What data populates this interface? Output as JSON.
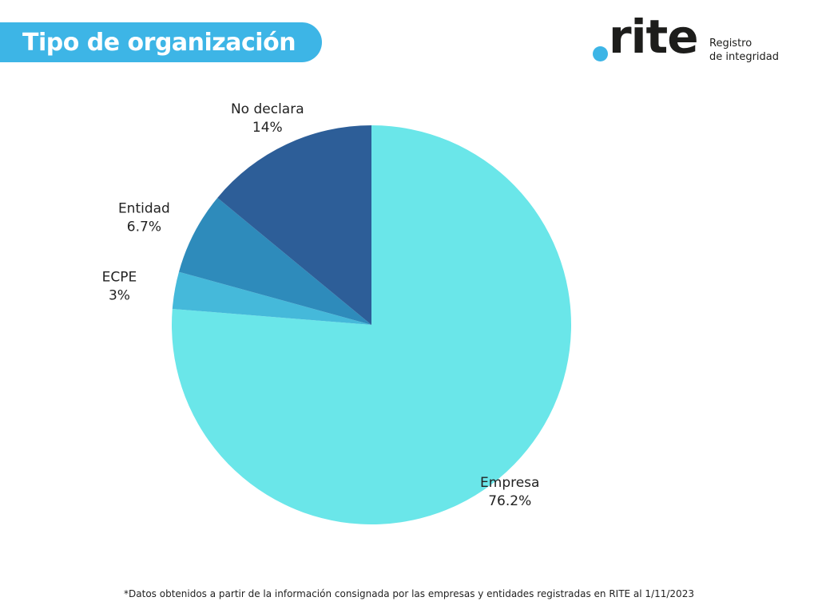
{
  "header": {
    "title": "Tipo de organización"
  },
  "logo": {
    "word": "rite",
    "line1": "Registro",
    "line2": "de integridad"
  },
  "chart_data": {
    "type": "pie",
    "title": "Tipo de organización",
    "start_angle_deg": 0,
    "direction": "clockwise",
    "slices": [
      {
        "label": "Empresa",
        "value": 76.2,
        "display": "76.2%",
        "color": "#6ae6e9"
      },
      {
        "label": "ECPE",
        "value": 3.0,
        "display": "3%",
        "color": "#45b9da"
      },
      {
        "label": "Entidad",
        "value": 6.7,
        "display": "6.7%",
        "color": "#2e8bbb"
      },
      {
        "label": "No declara",
        "value": 14.0,
        "display": "14%",
        "color": "#2d5e98"
      }
    ]
  },
  "footnote": "*Datos obtenidos a partir de la información consignada por las empresas y entidades registradas en RITE al 1/11/2023"
}
